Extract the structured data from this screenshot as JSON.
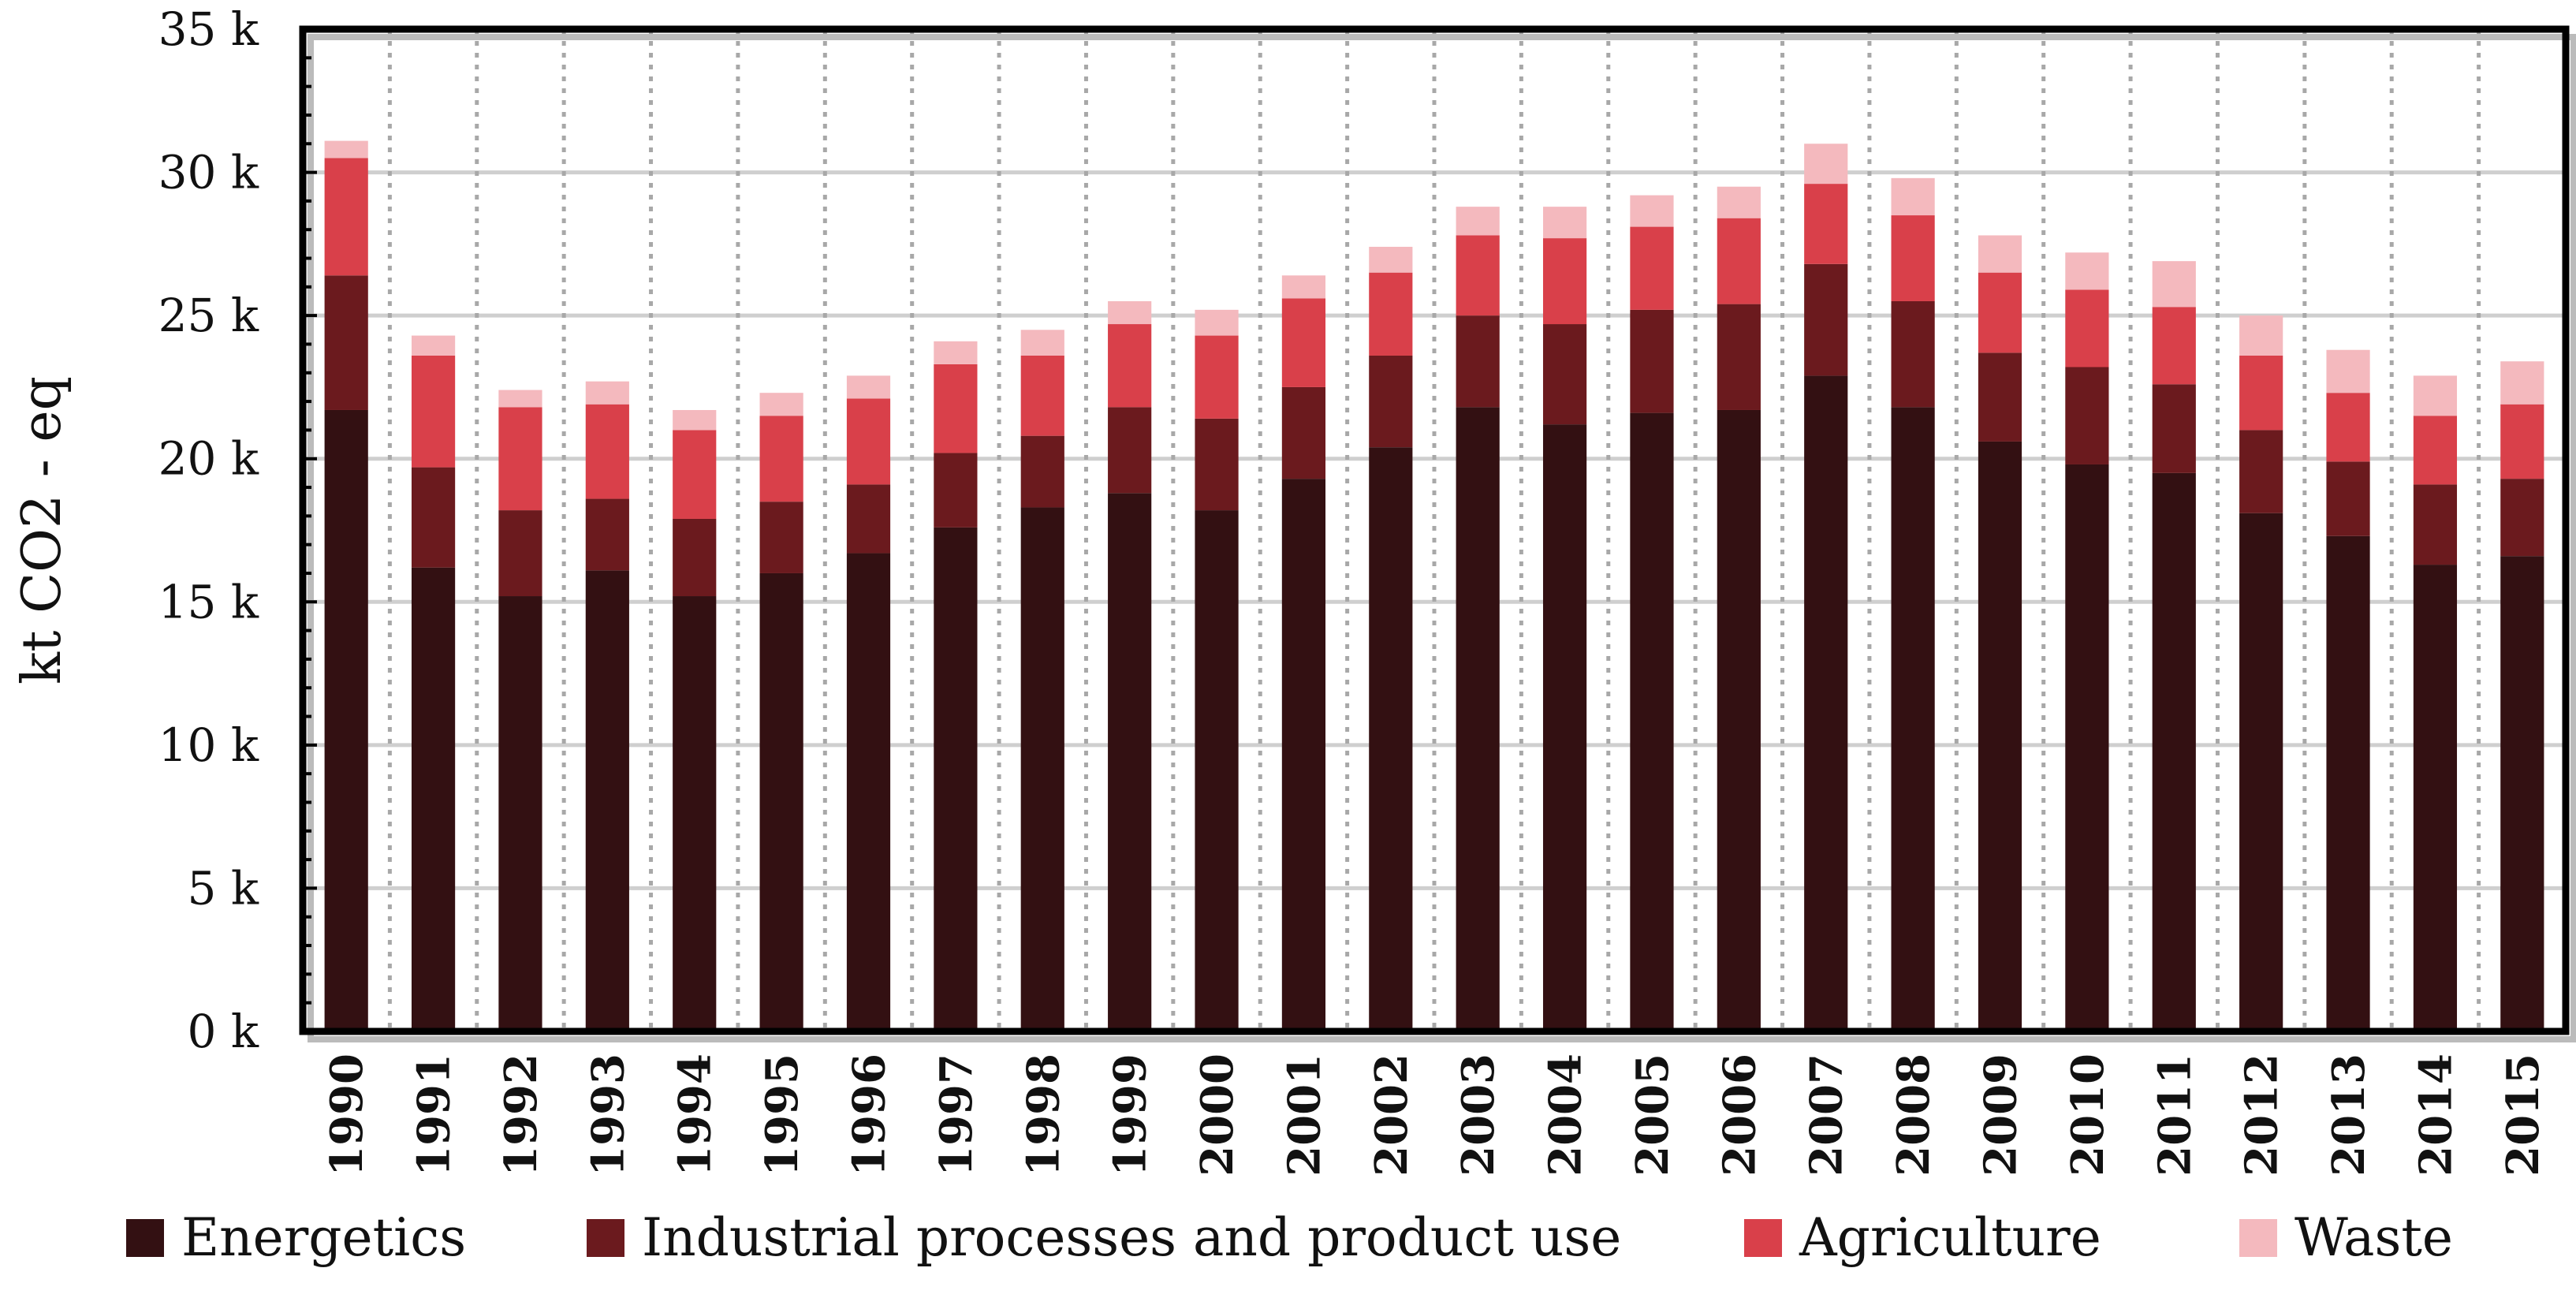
{
  "chart_data": {
    "type": "bar",
    "stacked": true,
    "title": "",
    "xlabel": "",
    "ylabel": "kt CO2 - eq",
    "ylim": [
      0,
      35000
    ],
    "yticks": [
      0,
      5000,
      10000,
      15000,
      20000,
      25000,
      30000,
      35000
    ],
    "ytick_labels": [
      "0 k",
      "5 k",
      "10 k",
      "15 k",
      "20 k",
      "25 k",
      "30 k",
      "35 k"
    ],
    "grid": true,
    "legend_position": "bottom",
    "categories": [
      "1990",
      "1991",
      "1992",
      "1993",
      "1994",
      "1995",
      "1996",
      "1997",
      "1998",
      "1999",
      "2000",
      "2001",
      "2002",
      "2003",
      "2004",
      "2005",
      "2006",
      "2007",
      "2008",
      "2009",
      "2010",
      "2011",
      "2012",
      "2013",
      "2014",
      "2015"
    ],
    "series": [
      {
        "name": "Energetics",
        "color": "#331012",
        "values": [
          21700,
          16200,
          15200,
          16100,
          15200,
          16000,
          16700,
          17600,
          18300,
          18800,
          18200,
          19300,
          20400,
          21800,
          21200,
          21600,
          21700,
          22900,
          21800,
          20600,
          19800,
          19500,
          18100,
          17300,
          16300,
          16600
        ]
      },
      {
        "name": "Industrial processes and product use",
        "color": "#6b1a1e",
        "values": [
          4700,
          3500,
          3000,
          2500,
          2700,
          2500,
          2400,
          2600,
          2500,
          3000,
          3200,
          3200,
          3200,
          3200,
          3500,
          3600,
          3700,
          3900,
          3700,
          3100,
          3400,
          3100,
          2900,
          2600,
          2800,
          2700
        ]
      },
      {
        "name": "Agriculture",
        "color": "#d9404a",
        "values": [
          4100,
          3900,
          3600,
          3300,
          3100,
          3000,
          3000,
          3100,
          2800,
          2900,
          2900,
          3100,
          2900,
          2800,
          3000,
          2900,
          3000,
          2800,
          3000,
          2800,
          2700,
          2700,
          2600,
          2400,
          2400,
          2600
        ]
      },
      {
        "name": "Waste",
        "color": "#f4b9be",
        "values": [
          600,
          700,
          600,
          800,
          700,
          800,
          800,
          800,
          900,
          800,
          900,
          800,
          900,
          1000,
          1100,
          1100,
          1100,
          1400,
          1300,
          1300,
          1300,
          1600,
          1400,
          1500,
          1400,
          1500
        ]
      }
    ]
  }
}
